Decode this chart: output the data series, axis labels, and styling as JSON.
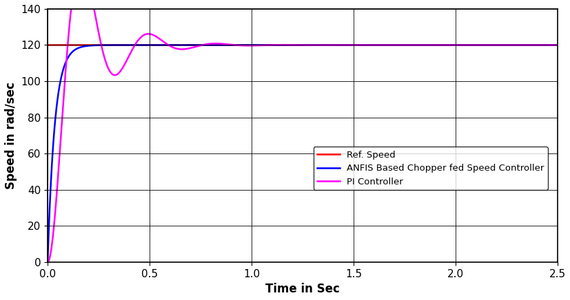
{
  "xlabel": "Time in Sec",
  "ylabel": "Speed in rad/sec",
  "xlim": [
    0,
    2.5
  ],
  "ylim": [
    0,
    140
  ],
  "yticks": [
    0,
    20,
    40,
    60,
    80,
    100,
    120,
    140
  ],
  "xticks": [
    0,
    0.5,
    1.0,
    1.5,
    2.0,
    2.5
  ],
  "legend_labels": [
    "Ref. Speed",
    "ANFIS Based Chopper fed Speed Controller",
    "PI Controller"
  ],
  "colors": {
    "ref": "#ff0000",
    "anfis": "#0000ff",
    "pi": "#ff00ff"
  },
  "linewidth": 1.8,
  "grid": true,
  "xlabel_fontsize": 12,
  "ylabel_fontsize": 12,
  "tick_fontsize": 11
}
